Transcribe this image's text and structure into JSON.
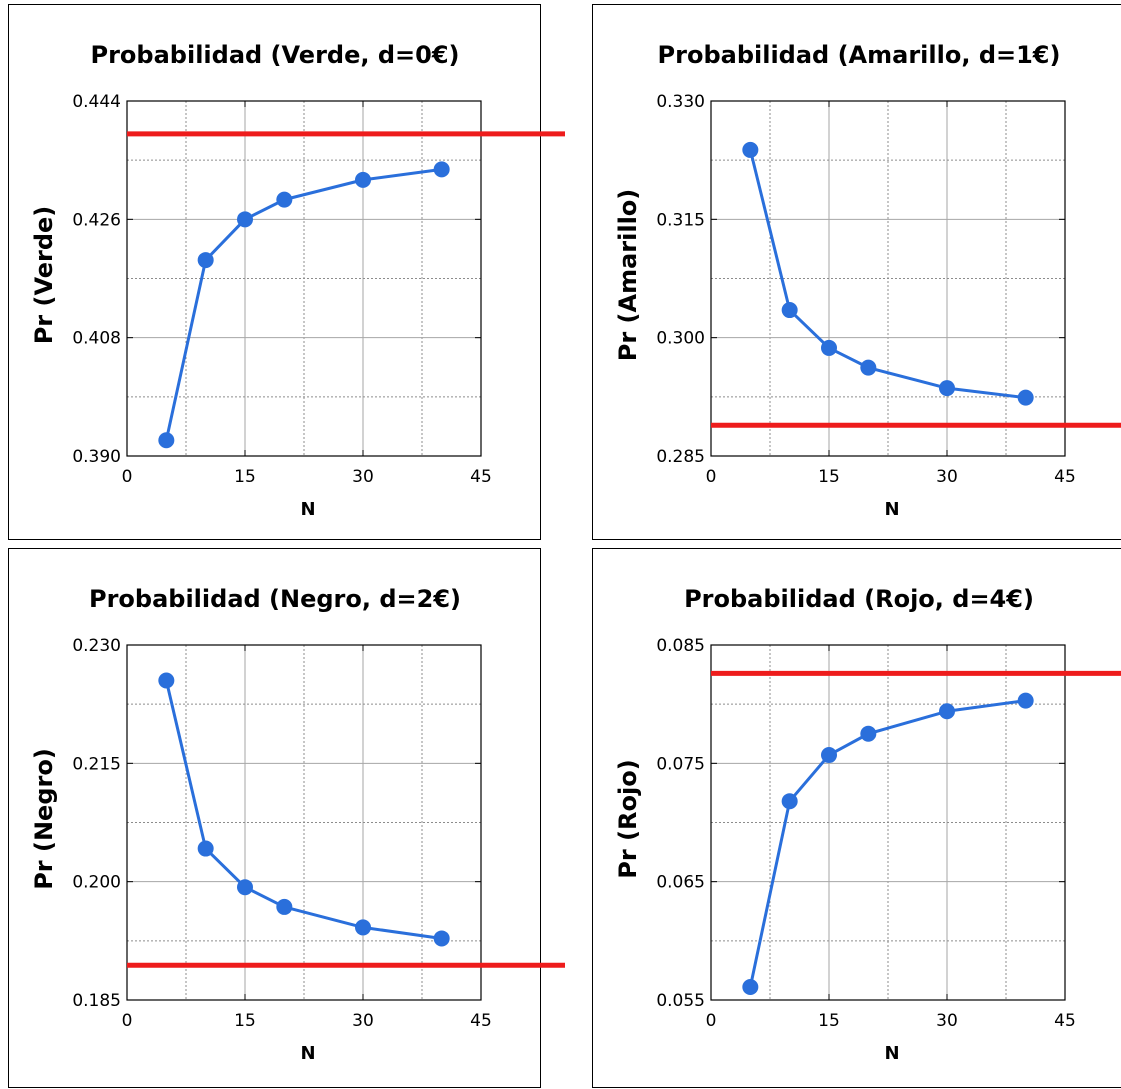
{
  "colors": {
    "series": "#2a6fdb",
    "reference": "#ee1c1c"
  },
  "chart_data": [
    {
      "type": "line",
      "title": "Probabilidad (Verde, d=0€)",
      "xlabel": "N",
      "ylabel": "Pr (Verde)",
      "xlim": [
        0,
        45
      ],
      "ylim": [
        0.39,
        0.444
      ],
      "x_ticks": [
        "0",
        "15",
        "30",
        "45"
      ],
      "y_ticks": [
        "0.390",
        "0.408",
        "0.426",
        "0.444"
      ],
      "grid": true,
      "series": [
        {
          "x": [
            5,
            10,
            15,
            20,
            30,
            40
          ],
          "values": [
            0.3924,
            0.4198,
            0.426,
            0.429,
            0.432,
            0.4336
          ]
        }
      ],
      "reference_line": 0.439
    },
    {
      "type": "line",
      "title": "Probabilidad (Amarillo, d=1€)",
      "xlabel": "N",
      "ylabel": "Pr (Amarillo)",
      "xlim": [
        0,
        45
      ],
      "ylim": [
        0.285,
        0.33
      ],
      "x_ticks": [
        "0",
        "15",
        "30",
        "45"
      ],
      "y_ticks": [
        "0.285",
        "0.300",
        "0.315",
        "0.330"
      ],
      "grid": true,
      "series": [
        {
          "x": [
            5,
            10,
            15,
            20,
            30,
            40
          ],
          "values": [
            0.3238,
            0.3035,
            0.2987,
            0.2962,
            0.2936,
            0.2924
          ]
        }
      ],
      "reference_line": 0.2889
    },
    {
      "type": "line",
      "title": "Probabilidad (Negro, d=2€)",
      "xlabel": "N",
      "ylabel": "Pr (Negro)",
      "xlim": [
        0,
        45
      ],
      "ylim": [
        0.185,
        0.23
      ],
      "x_ticks": [
        "0",
        "15",
        "30",
        "45"
      ],
      "y_ticks": [
        "0.185",
        "0.200",
        "0.215",
        "0.230"
      ],
      "grid": true,
      "series": [
        {
          "x": [
            5,
            10,
            15,
            20,
            30,
            40
          ],
          "values": [
            0.2255,
            0.2042,
            0.1993,
            0.1968,
            0.1942,
            0.1928
          ]
        }
      ],
      "reference_line": 0.1894
    },
    {
      "type": "line",
      "title": "Probabilidad (Rojo, d=4€)",
      "xlabel": "N",
      "ylabel": "Pr (Rojo)",
      "xlim": [
        0,
        45
      ],
      "ylim": [
        0.055,
        0.085
      ],
      "x_ticks": [
        "0",
        "15",
        "30",
        "45"
      ],
      "y_ticks": [
        "0.055",
        "0.065",
        "0.075",
        "0.085"
      ],
      "grid": true,
      "series": [
        {
          "x": [
            5,
            10,
            15,
            20,
            30,
            40
          ],
          "values": [
            0.0561,
            0.0718,
            0.0757,
            0.0775,
            0.0794,
            0.0803
          ]
        }
      ],
      "reference_line": 0.0826
    }
  ]
}
